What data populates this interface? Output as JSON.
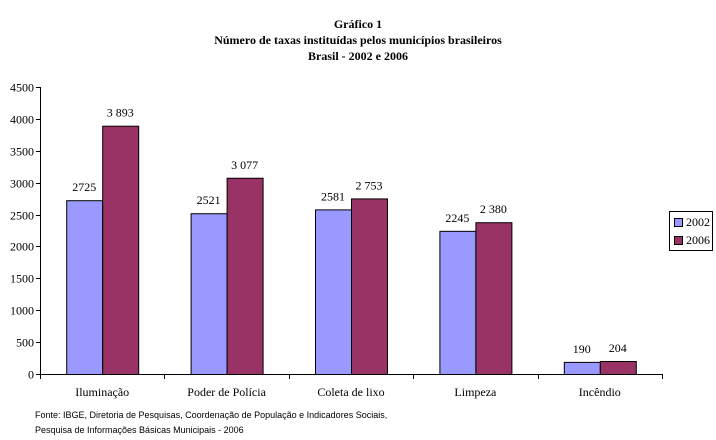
{
  "titles": {
    "line1": "Gráfico 1",
    "line2": "Número de taxas instituídas pelos municípios brasileiros",
    "line3": "Brasil - 2002 e 2006"
  },
  "source": {
    "line1": "Fonte: IBGE, Diretoria de Pesquisas, Coordenação de População e Indicadores Sociais,",
    "line2": "Pesquisa de Informações Básicas Municipais - 2006"
  },
  "colors": {
    "s2002": "#9999ff",
    "s2006": "#993366",
    "axis": "#000000"
  },
  "chart_data": {
    "type": "bar",
    "title": "Número de taxas instituídas pelos municípios brasileiros",
    "categories": [
      "Iluminação",
      "Poder de Polícia",
      "Coleta de lixo",
      "Limpeza",
      "Incêndio"
    ],
    "series": [
      {
        "name": "2002",
        "values": [
          2725,
          2521,
          2581,
          2245,
          190
        ],
        "labels": [
          "2725",
          "2521",
          "2581",
          "2245",
          "190"
        ]
      },
      {
        "name": "2006",
        "values": [
          3893,
          3077,
          2753,
          2380,
          204
        ],
        "labels": [
          "3 893",
          "3 077",
          "2 753",
          "2 380",
          "204"
        ]
      }
    ],
    "ylim": [
      0,
      4500
    ],
    "yticks": [
      "0",
      "500",
      "1000",
      "1500",
      "2000",
      "2500",
      "3000",
      "3500",
      "4000",
      "4500"
    ],
    "grid": false,
    "legend": "right"
  }
}
